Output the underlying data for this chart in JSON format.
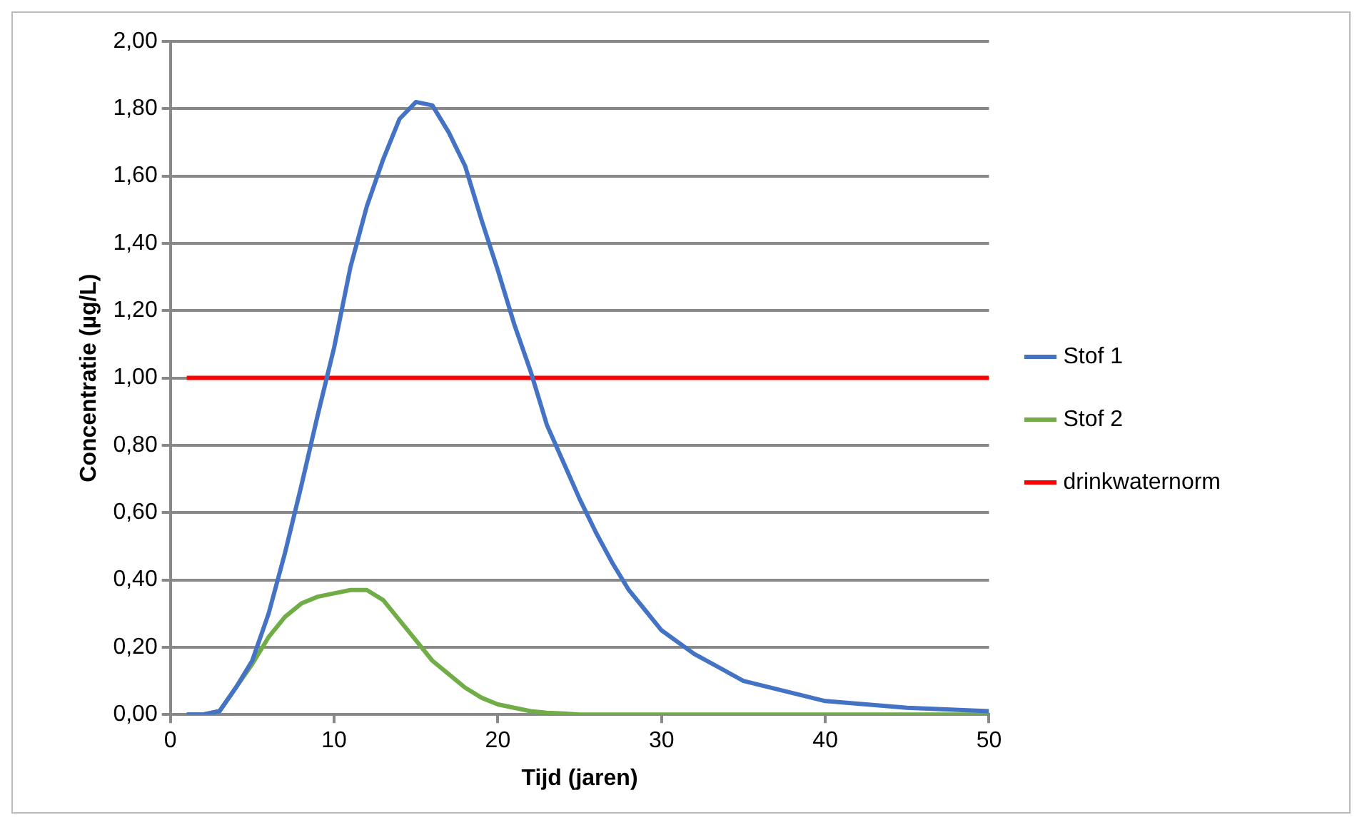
{
  "chart_data": {
    "type": "line",
    "xlabel": "Tijd (jaren)",
    "ylabel": "Concentratie (µg/L)",
    "xlim": [
      0,
      50
    ],
    "xticks": [
      0,
      10,
      20,
      30,
      40,
      50
    ],
    "ylim": [
      0,
      2
    ],
    "yticks": [
      {
        "value": 0,
        "label": "0,00"
      },
      {
        "value": 0.2,
        "label": "0,20"
      },
      {
        "value": 0.4,
        "label": "0,40"
      },
      {
        "value": 0.6,
        "label": "0,60"
      },
      {
        "value": 0.8,
        "label": "0,80"
      },
      {
        "value": 1,
        "label": "1,00"
      },
      {
        "value": 1.2,
        "label": "1,20"
      },
      {
        "value": 1.4,
        "label": "1,40"
      },
      {
        "value": 1.6,
        "label": "1,60"
      },
      {
        "value": 1.8,
        "label": "1,80"
      },
      {
        "value": 2,
        "label": "2,00"
      }
    ],
    "grid": "y",
    "legend": "right",
    "marker": "none",
    "line_style": "solid",
    "x": [
      1,
      2,
      3,
      4,
      5,
      6,
      7,
      8,
      9,
      10,
      11,
      12,
      13,
      14,
      15,
      16,
      17,
      18,
      19,
      20,
      21,
      22,
      23,
      24,
      25,
      26,
      27,
      28,
      29,
      30,
      32,
      35,
      40,
      45,
      50
    ],
    "series": [
      {
        "name": "Stof 1",
        "color": "#4472c4",
        "values": [
          0,
          0,
          0.01,
          0.08,
          0.16,
          0.3,
          0.48,
          0.68,
          0.89,
          1.09,
          1.33,
          1.51,
          1.65,
          1.77,
          1.82,
          1.81,
          1.73,
          1.63,
          1.47,
          1.32,
          1.16,
          1.02,
          0.86,
          0.75,
          0.64,
          0.54,
          0.45,
          0.37,
          0.31,
          0.25,
          0.18,
          0.1,
          0.04,
          0.02,
          0.01
        ]
      },
      {
        "name": "Stof 2",
        "color": "#70ad47",
        "values": [
          0,
          0,
          0.01,
          0.08,
          0.15,
          0.23,
          0.29,
          0.33,
          0.35,
          0.36,
          0.37,
          0.37,
          0.34,
          0.28,
          0.22,
          0.16,
          0.12,
          0.08,
          0.05,
          0.03,
          0.02,
          0.01,
          0.005,
          0.003,
          0,
          0,
          0,
          0,
          0,
          0,
          0,
          0,
          0,
          0,
          0
        ]
      },
      {
        "name": "drinkwaternorm",
        "color": "#ff0000",
        "values": [
          1,
          1,
          1,
          1,
          1,
          1,
          1,
          1,
          1,
          1,
          1,
          1,
          1,
          1,
          1,
          1,
          1,
          1,
          1,
          1,
          1,
          1,
          1,
          1,
          1,
          1,
          1,
          1,
          1,
          1,
          1,
          1,
          1,
          1,
          1
        ]
      }
    ]
  }
}
